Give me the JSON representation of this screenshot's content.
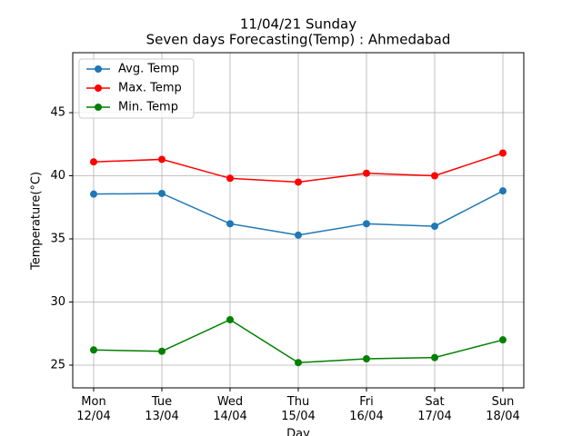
{
  "chart_data": {
    "type": "line",
    "title": "11/04/21 Sunday",
    "subtitle": "Seven days Forecasting(Temp) : Ahmedabad",
    "x_label": "Day",
    "y_label": "Temperature(°C)",
    "categories": [
      "Mon\n12/04",
      "Tue\n13/04",
      "Wed\n14/04",
      "Thu\n15/04",
      "Fri\n16/04",
      "Sat\n17/04",
      "Sun\n18/04"
    ],
    "series": [
      {
        "name": "Avg. Temp",
        "color": "#1f77b4",
        "values": [
          38.55,
          38.6,
          36.2,
          35.3,
          36.2,
          36.0,
          38.8
        ]
      },
      {
        "name": "Max. Temp",
        "color": "#ff0000",
        "values": [
          41.1,
          41.3,
          39.8,
          39.5,
          40.2,
          40.0,
          41.8
        ]
      },
      {
        "name": "Min. Temp",
        "color": "#008000",
        "values": [
          26.2,
          26.1,
          28.6,
          25.2,
          25.5,
          25.6,
          27.0
        ]
      }
    ],
    "ylim": [
      23.2,
      49.75
    ],
    "yticks": [
      25,
      30,
      35,
      40,
      45
    ],
    "grid": true,
    "legend": "upper left"
  }
}
